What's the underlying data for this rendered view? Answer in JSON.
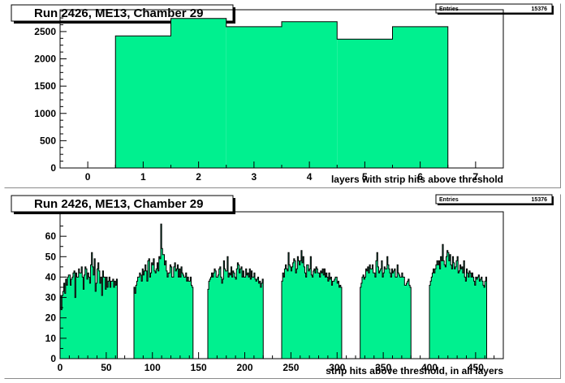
{
  "chart_data": [
    {
      "type": "bar",
      "title": "Run 2426, ME13, Chamber 29",
      "stats": {
        "label": "Entries",
        "value": "15376"
      },
      "xlabel": "layers with strip hits above threshold",
      "ylabel": "",
      "xlim": [
        -0.5,
        7.5
      ],
      "ylim": [
        0,
        2900
      ],
      "xticks": [
        "0",
        "1",
        "2",
        "3",
        "4",
        "5",
        "6",
        "7"
      ],
      "yticks": [
        "0",
        "500",
        "1000",
        "1500",
        "2000",
        "2500"
      ],
      "fill_color": "#00f08f",
      "categories": [
        1,
        2,
        3,
        4,
        5,
        6
      ],
      "values": [
        2420,
        2740,
        2590,
        2680,
        2360,
        2590
      ]
    },
    {
      "type": "bar",
      "title": "Run 2426, ME13, Chamber 29",
      "stats": {
        "label": "Entries",
        "value": "15376"
      },
      "xlabel": "strip hits above threshold, in all layers",
      "ylabel": "",
      "xlim": [
        0,
        480
      ],
      "ylim": [
        0,
        72
      ],
      "xticks": [
        "0",
        "50",
        "100",
        "150",
        "200",
        "250",
        "300",
        "350",
        "400",
        "450"
      ],
      "yticks": [
        "0",
        "10",
        "20",
        "30",
        "40",
        "50",
        "60"
      ],
      "fill_color": "#00f08f",
      "bin_width": 1,
      "bins_x0": 0,
      "values": [
        31,
        24,
        31,
        33,
        37,
        32,
        39,
        36,
        40,
        41,
        41,
        36,
        39,
        40,
        42,
        43,
        30,
        42,
        40,
        40,
        44,
        42,
        42,
        45,
        40,
        34,
        41,
        45,
        44,
        39,
        42,
        40,
        37,
        46,
        52,
        45,
        41,
        49,
        33,
        37,
        44,
        47,
        43,
        37,
        40,
        31,
        43,
        40,
        40,
        34,
        40,
        35,
        38,
        40,
        35,
        38,
        38,
        39,
        35,
        38,
        36,
        39,
        0,
        0,
        0,
        0,
        0,
        0,
        0,
        0,
        0,
        0,
        0,
        0,
        0,
        0,
        0,
        0,
        0,
        0,
        35,
        32,
        36,
        38,
        40,
        40,
        42,
        41,
        38,
        44,
        41,
        43,
        46,
        43,
        38,
        48,
        49,
        40,
        42,
        47,
        46,
        49,
        43,
        42,
        44,
        47,
        43,
        50,
        49,
        66,
        54,
        51,
        51,
        46,
        48,
        43,
        40,
        42,
        42,
        46,
        45,
        40,
        40,
        45,
        47,
        43,
        44,
        46,
        40,
        44,
        40,
        45,
        42,
        41,
        40,
        40,
        42,
        38,
        40,
        38,
        38,
        40,
        36,
        35,
        0,
        0,
        0,
        0,
        0,
        0,
        0,
        0,
        0,
        0,
        0,
        0,
        0,
        0,
        0,
        0,
        34,
        38,
        39,
        40,
        42,
        40,
        42,
        44,
        43,
        40,
        40,
        41,
        44,
        45,
        40,
        37,
        39,
        48,
        44,
        43,
        43,
        50,
        40,
        42,
        41,
        45,
        40,
        43,
        42,
        40,
        39,
        44,
        47,
        46,
        42,
        44,
        45,
        40,
        43,
        40,
        40,
        44,
        41,
        42,
        40,
        44,
        39,
        43,
        40,
        40,
        42,
        39,
        38,
        39,
        40,
        37,
        38,
        35,
        37,
        39,
        0,
        0,
        0,
        0,
        0,
        0,
        0,
        0,
        0,
        0,
        0,
        0,
        0,
        0,
        0,
        0,
        0,
        0,
        0,
        0,
        38,
        42,
        40,
        44,
        46,
        44,
        43,
        52,
        46,
        45,
        43,
        45,
        47,
        49,
        48,
        42,
        44,
        50,
        48,
        46,
        48,
        53,
        47,
        50,
        45,
        42,
        40,
        46,
        46,
        43,
        44,
        50,
        41,
        40,
        43,
        44,
        42,
        45,
        44,
        42,
        42,
        40,
        43,
        42,
        44,
        41,
        44,
        40,
        42,
        40,
        38,
        42,
        39,
        40,
        36,
        38,
        38,
        39,
        40,
        40,
        37,
        38,
        35,
        36,
        35,
        0,
        0,
        0,
        0,
        0,
        0,
        0,
        0,
        0,
        0,
        0,
        0,
        0,
        0,
        0,
        0,
        0,
        0,
        0,
        0,
        35,
        37,
        40,
        41,
        39,
        40,
        44,
        43,
        45,
        42,
        46,
        44,
        44,
        46,
        42,
        42,
        40,
        48,
        52,
        45,
        42,
        43,
        44,
        48,
        40,
        42,
        45,
        44,
        44,
        50,
        46,
        44,
        42,
        40,
        44,
        42,
        43,
        44,
        40,
        40,
        46,
        42,
        41,
        40,
        40,
        42,
        40,
        40,
        36,
        36,
        37,
        38,
        39,
        36,
        35,
        0,
        0,
        0,
        0,
        0,
        0,
        0,
        0,
        0,
        0,
        0,
        0,
        0,
        0,
        0,
        0,
        0,
        0,
        0,
        0,
        36,
        38,
        40,
        42,
        44,
        42,
        44,
        46,
        48,
        46,
        48,
        44,
        50,
        48,
        56,
        48,
        46,
        45,
        50,
        53,
        52,
        48,
        51,
        46,
        44,
        50,
        47,
        44,
        45,
        48,
        50,
        42,
        43,
        46,
        44,
        45,
        42,
        48,
        40,
        38,
        44,
        42,
        40,
        43,
        42,
        40,
        42,
        40,
        38,
        36,
        40,
        39,
        40,
        41,
        38,
        39,
        40,
        38,
        36,
        35,
        38,
        40
      ]
    }
  ]
}
